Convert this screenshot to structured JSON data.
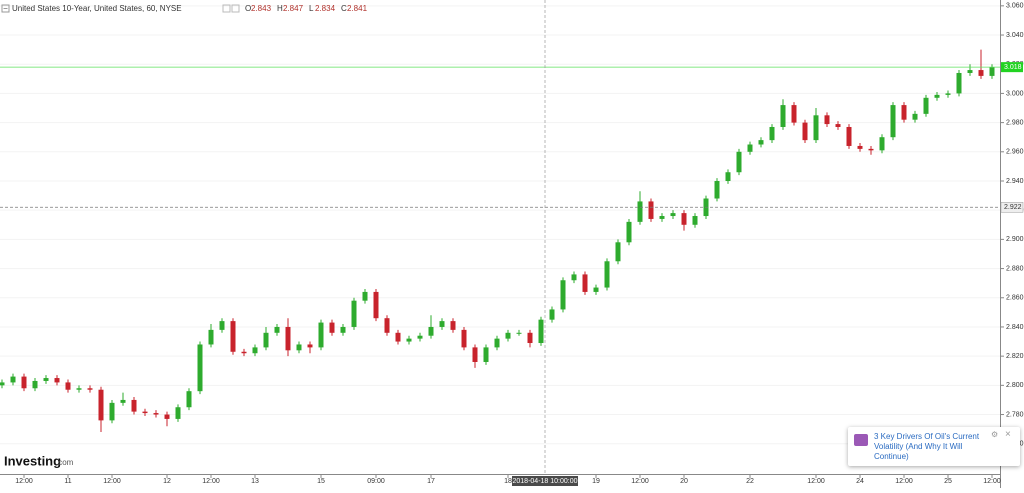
{
  "header": {
    "title": "United States 10-Year, United States, 60, NYSE",
    "ohlc_labels": [
      "O",
      "H",
      "L",
      "C"
    ],
    "ohlc_values": [
      2.843,
      2.847,
      2.834,
      2.841
    ]
  },
  "logo": {
    "name": "Investing",
    "suffix": ".com"
  },
  "popup": {
    "text": "3 Key Drivers Of Oil's Current Volatility (And Why It Will Continue)"
  },
  "chart_data": {
    "type": "candlestick",
    "up_color": "#2eab2e",
    "down_color": "#c8232c",
    "grid": true,
    "categories": [
      null,
      null,
      "12:00",
      null,
      null,
      null,
      "11",
      null,
      null,
      null,
      "12:00",
      null,
      null,
      null,
      null,
      "12",
      null,
      null,
      null,
      "12:00",
      null,
      null,
      null,
      "13",
      null,
      null,
      null,
      null,
      null,
      "15",
      null,
      null,
      null,
      null,
      "09:00",
      null,
      null,
      null,
      null,
      "17",
      null,
      null,
      null,
      null,
      null,
      null,
      "18",
      null,
      null,
      null,
      null,
      null,
      null,
      null,
      "19",
      null,
      null,
      null,
      "12:00",
      null,
      null,
      null,
      "20",
      null,
      null,
      null,
      null,
      null,
      "22",
      null,
      null,
      null,
      null,
      null,
      "12:00",
      null,
      null,
      null,
      "24",
      null,
      null,
      null,
      "12:00",
      null,
      null,
      null,
      "25",
      null,
      null,
      null,
      "12:00"
    ],
    "open": [
      2.8,
      2.802,
      2.806,
      2.798,
      2.803,
      2.805,
      2.802,
      2.797,
      2.798,
      2.797,
      2.776,
      2.788,
      2.79,
      2.782,
      2.781,
      2.78,
      2.777,
      2.785,
      2.796,
      2.828,
      2.838,
      2.844,
      2.823,
      2.822,
      2.826,
      2.836,
      2.84,
      2.824,
      2.828,
      2.826,
      2.843,
      2.836,
      2.84,
      2.858,
      2.864,
      2.846,
      2.836,
      2.83,
      2.832,
      2.834,
      2.84,
      2.844,
      2.838,
      2.826,
      2.816,
      2.826,
      2.832,
      2.836,
      2.836,
      2.829,
      2.845,
      2.852,
      2.872,
      2.876,
      2.864,
      2.867,
      2.885,
      2.898,
      2.912,
      2.926,
      2.914,
      2.916,
      2.918,
      2.91,
      2.916,
      2.928,
      2.94,
      2.946,
      2.96,
      2.965,
      2.968,
      2.977,
      2.992,
      2.98,
      2.968,
      2.985,
      2.979,
      2.977,
      2.964,
      2.962,
      2.961,
      2.97,
      2.992,
      2.982,
      2.986,
      2.997,
      2.999,
      3.0,
      3.014,
      3.016,
      3.012
    ],
    "high": [
      2.804,
      2.808,
      2.808,
      2.805,
      2.807,
      2.807,
      2.804,
      2.8,
      2.8,
      2.799,
      2.79,
      2.795,
      2.792,
      2.784,
      2.783,
      2.782,
      2.787,
      2.798,
      2.83,
      2.842,
      2.846,
      2.846,
      2.825,
      2.828,
      2.84,
      2.842,
      2.846,
      2.83,
      2.83,
      2.845,
      2.845,
      2.842,
      2.86,
      2.866,
      2.866,
      2.848,
      2.838,
      2.834,
      2.836,
      2.848,
      2.846,
      2.846,
      2.84,
      2.828,
      2.828,
      2.834,
      2.838,
      2.838,
      2.838,
      2.847,
      2.854,
      2.874,
      2.878,
      2.878,
      2.869,
      2.887,
      2.9,
      2.914,
      2.933,
      2.928,
      2.918,
      2.92,
      2.92,
      2.918,
      2.93,
      2.942,
      2.948,
      2.962,
      2.967,
      2.97,
      2.979,
      2.996,
      2.994,
      2.982,
      2.99,
      2.987,
      2.981,
      2.979,
      2.966,
      2.964,
      2.972,
      2.994,
      2.994,
      2.988,
      2.999,
      3.001,
      3.002,
      3.016,
      3.02,
      3.03,
      3.02
    ],
    "low": [
      2.798,
      2.8,
      2.796,
      2.796,
      2.801,
      2.8,
      2.795,
      2.795,
      2.795,
      2.768,
      2.774,
      2.786,
      2.78,
      2.779,
      2.778,
      2.772,
      2.775,
      2.783,
      2.794,
      2.826,
      2.836,
      2.821,
      2.82,
      2.82,
      2.824,
      2.834,
      2.82,
      2.822,
      2.822,
      2.824,
      2.834,
      2.834,
      2.838,
      2.856,
      2.844,
      2.834,
      2.828,
      2.828,
      2.83,
      2.832,
      2.838,
      2.836,
      2.824,
      2.812,
      2.814,
      2.824,
      2.83,
      2.834,
      2.826,
      2.827,
      2.843,
      2.85,
      2.87,
      2.862,
      2.862,
      2.865,
      2.883,
      2.896,
      2.91,
      2.912,
      2.912,
      2.914,
      2.906,
      2.908,
      2.914,
      2.926,
      2.938,
      2.944,
      2.958,
      2.963,
      2.966,
      2.975,
      2.978,
      2.966,
      2.966,
      2.977,
      2.975,
      2.962,
      2.96,
      2.958,
      2.959,
      2.968,
      2.98,
      2.98,
      2.984,
      2.995,
      2.997,
      2.998,
      3.012,
      3.01,
      3.01
    ],
    "close": [
      2.802,
      2.806,
      2.798,
      2.803,
      2.805,
      2.802,
      2.797,
      2.798,
      2.797,
      2.776,
      2.788,
      2.79,
      2.782,
      2.781,
      2.78,
      2.777,
      2.785,
      2.796,
      2.828,
      2.838,
      2.844,
      2.823,
      2.822,
      2.826,
      2.836,
      2.84,
      2.824,
      2.828,
      2.826,
      2.843,
      2.836,
      2.84,
      2.858,
      2.864,
      2.846,
      2.836,
      2.83,
      2.832,
      2.834,
      2.84,
      2.844,
      2.838,
      2.826,
      2.816,
      2.826,
      2.832,
      2.836,
      2.836,
      2.829,
      2.845,
      2.852,
      2.872,
      2.876,
      2.864,
      2.867,
      2.885,
      2.898,
      2.912,
      2.926,
      2.914,
      2.916,
      2.918,
      2.91,
      2.916,
      2.928,
      2.94,
      2.946,
      2.96,
      2.965,
      2.968,
      2.977,
      2.992,
      2.98,
      2.968,
      2.985,
      2.979,
      2.977,
      2.964,
      2.962,
      2.961,
      2.97,
      2.992,
      2.982,
      2.986,
      2.997,
      2.999,
      3.0,
      3.014,
      3.016,
      3.012,
      3.018
    ],
    "ylim": [
      2.742,
      3.064
    ],
    "yticks": [
      {
        "value": 2.76,
        "label": "2.760"
      },
      {
        "value": 2.78,
        "label": "2.780"
      },
      {
        "value": 2.8,
        "label": "2.800"
      },
      {
        "value": 2.82,
        "label": "2.820"
      },
      {
        "value": 2.84,
        "label": "2.840"
      },
      {
        "value": 2.86,
        "label": "2.860"
      },
      {
        "value": 2.88,
        "label": "2.880"
      },
      {
        "value": 2.9,
        "label": "2.900"
      },
      {
        "value": 2.92,
        "label": "2.920"
      },
      {
        "value": 2.94,
        "label": "2.940"
      },
      {
        "value": 2.96,
        "label": "2.960"
      },
      {
        "value": 2.98,
        "label": "2.980"
      },
      {
        "value": 3,
        "label": "3.000"
      },
      {
        "value": 3.02,
        "label": "3.020"
      },
      {
        "value": 3.04,
        "label": "3.040"
      },
      {
        "value": 3.06,
        "label": "3.060"
      }
    ],
    "last_price": {
      "value": 3.018,
      "label": "3.018"
    },
    "crosshair": {
      "time": "2018-04-18 10:00:00",
      "price": {
        "value": 2.922,
        "label": "2.922"
      }
    }
  }
}
